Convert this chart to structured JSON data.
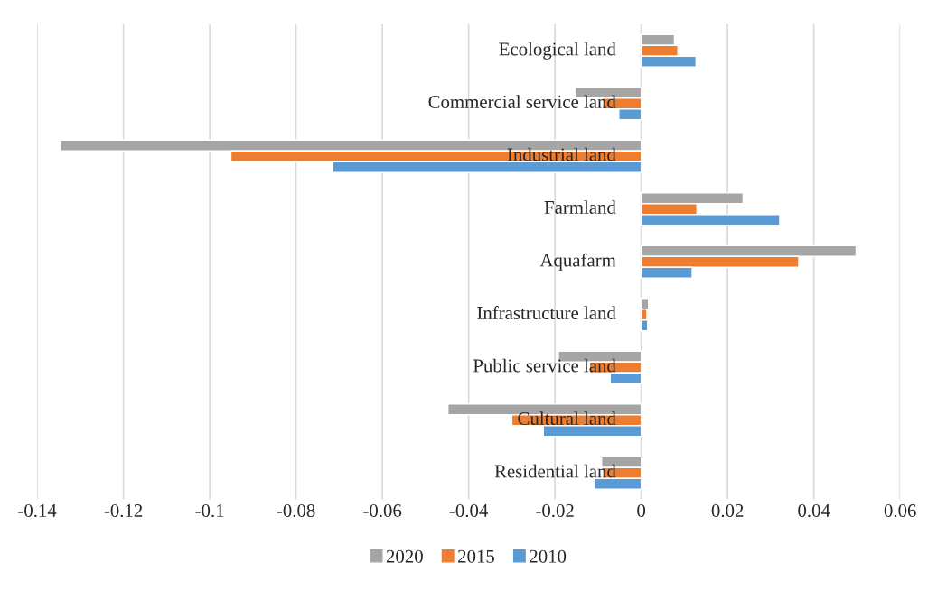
{
  "chart_data": {
    "type": "bar",
    "orientation": "horizontal",
    "categories": [
      "Ecological land",
      "Commercial service land",
      "Industrial land",
      "Farmland",
      "Aquafarm",
      "Infrastructure land",
      "Public service land",
      "Cultural land",
      "Residential land"
    ],
    "series": [
      {
        "name": "2020",
        "color": "#a5a5a5",
        "values": [
          0.0077,
          -0.0153,
          -0.1346,
          0.0236,
          0.0498,
          0.0017,
          -0.0192,
          -0.0448,
          -0.0092
        ]
      },
      {
        "name": "2015",
        "color": "#ed7d31",
        "values": [
          0.0085,
          -0.009,
          -0.0951,
          0.0129,
          0.0365,
          0.0013,
          -0.012,
          -0.03,
          -0.009
        ]
      },
      {
        "name": "2010",
        "color": "#5b9bd5",
        "values": [
          0.0127,
          -0.0052,
          -0.0715,
          0.0321,
          0.0118,
          0.0015,
          -0.0072,
          -0.0227,
          -0.0109
        ]
      }
    ],
    "xlim": [
      -0.14,
      0.06
    ],
    "xticks": [
      -0.14,
      -0.12,
      -0.1,
      -0.08,
      -0.06,
      -0.04,
      -0.02,
      0,
      0.02,
      0.04,
      0.06
    ],
    "grid": "x",
    "legend": "bottom"
  }
}
